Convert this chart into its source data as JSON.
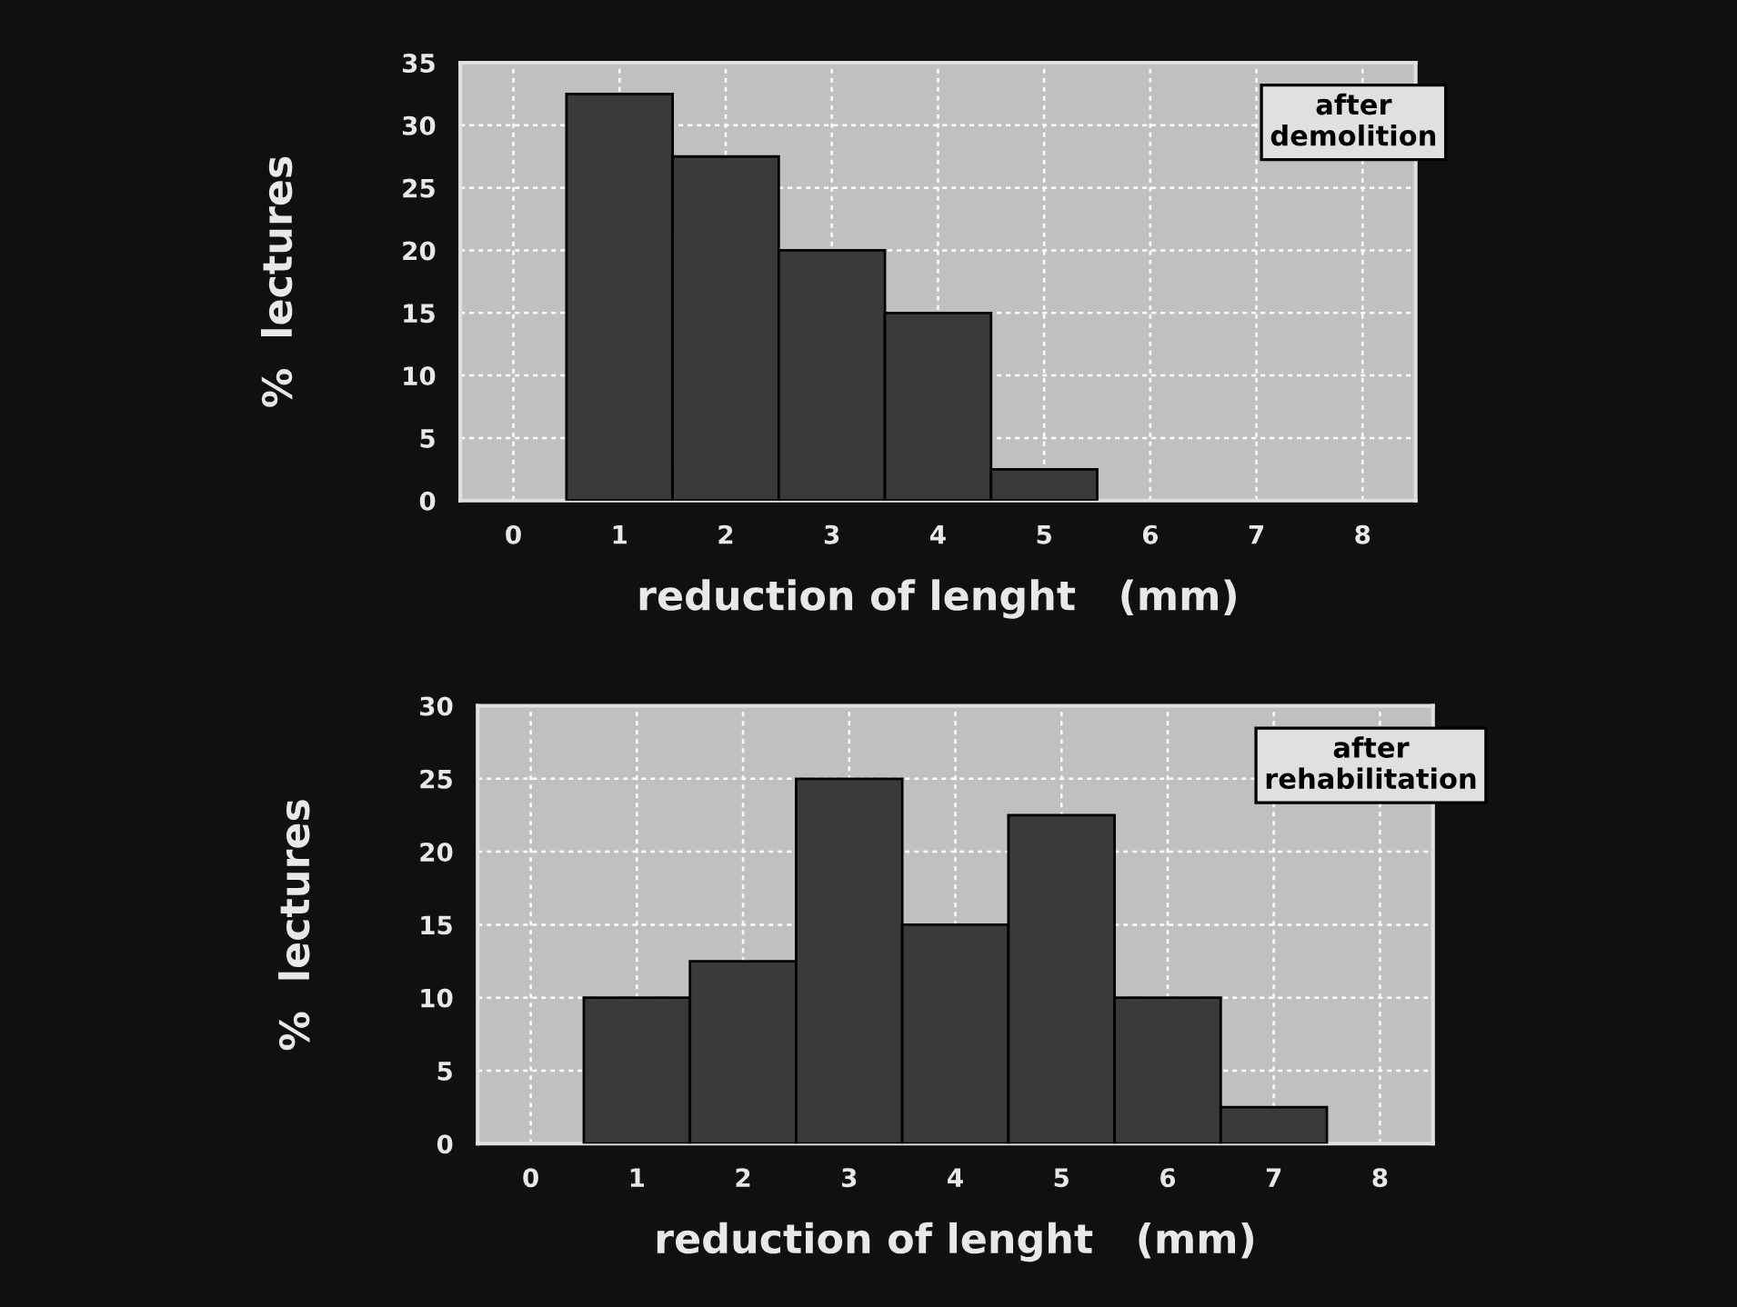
{
  "chart_data": [
    {
      "type": "histogram",
      "bins": [
        0.5,
        1.5,
        2.5,
        3.5,
        4.5,
        5.5
      ],
      "values": [
        32.5,
        27.5,
        20,
        15,
        2.5
      ],
      "color": "#3a3a3a",
      "xlabel": "reduction of lenght   (mm)",
      "ylabel": "%  lectures",
      "xlim": [
        -0.5,
        8.5
      ],
      "xticks": [
        0,
        1,
        2,
        3,
        4,
        5,
        6,
        7,
        8
      ],
      "ylim": [
        0,
        35
      ],
      "yticks": [
        0,
        5,
        10,
        15,
        20,
        25,
        30,
        35
      ],
      "grid": true,
      "annotations": [
        "after\ndemolition"
      ]
    },
    {
      "type": "histogram",
      "bins": [
        0.5,
        1.5,
        2.5,
        3.5,
        4.5,
        5.5,
        6.5,
        7.5
      ],
      "values": [
        10,
        12.5,
        25,
        15,
        22.5,
        10,
        2.5
      ],
      "color": "#3a3a3a",
      "xlabel": "reduction of lenght   (mm)",
      "ylabel": "%  lectures",
      "xlim": [
        -0.5,
        8.5
      ],
      "xticks": [
        0,
        1,
        2,
        3,
        4,
        5,
        6,
        7,
        8
      ],
      "ylim": [
        0,
        30
      ],
      "yticks": [
        0,
        5,
        10,
        15,
        20,
        25,
        30
      ],
      "grid": true,
      "annotations": [
        "after\nrehabilitation"
      ]
    }
  ]
}
